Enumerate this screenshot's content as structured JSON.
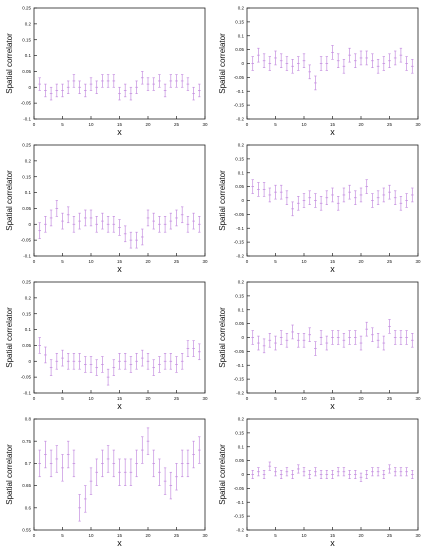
{
  "colors": {
    "marker": "#c58fe0",
    "axis": "#222222",
    "text": "#111111"
  },
  "chart_data": [
    {
      "type": "scatter",
      "xlabel": "x",
      "ylabel": "Spatial correlator",
      "xlim": [
        0,
        30
      ],
      "ylim": [
        -0.1,
        0.25
      ],
      "xticks": [
        "0",
        "5",
        "10",
        "15",
        "20",
        "25",
        "30"
      ],
      "yticks": [
        "0.25",
        "0.2",
        "0.15",
        "0.1",
        "0.05",
        "0",
        "-0.05",
        "-0.1"
      ],
      "series": [
        {
          "x": [
            1,
            2,
            3,
            4,
            5,
            6,
            7,
            8,
            9,
            10,
            11,
            12,
            13,
            14,
            15,
            16,
            17,
            18,
            19,
            20,
            21,
            22,
            23,
            24,
            25,
            26,
            27,
            28,
            29
          ],
          "y": [
            0.01,
            -0.01,
            -0.02,
            -0.01,
            -0.01,
            0.0,
            0.02,
            0.0,
            -0.01,
            0.01,
            0.0,
            0.02,
            0.02,
            0.02,
            -0.02,
            -0.01,
            -0.02,
            0.0,
            0.03,
            0.01,
            0.01,
            0.02,
            -0.01,
            0.02,
            0.02,
            0.02,
            0.01,
            -0.02,
            -0.01
          ],
          "err": [
            0.02,
            0.02,
            0.02,
            0.02,
            0.02,
            0.02,
            0.02,
            0.02,
            0.02,
            0.02,
            0.02,
            0.02,
            0.02,
            0.02,
            0.02,
            0.02,
            0.02,
            0.02,
            0.02,
            0.02,
            0.02,
            0.02,
            0.02,
            0.02,
            0.02,
            0.02,
            0.02,
            0.02,
            0.02
          ]
        }
      ]
    },
    {
      "type": "scatter",
      "xlabel": "x",
      "ylabel": "Spatial correlator",
      "xlim": [
        0,
        30
      ],
      "ylim": [
        -0.2,
        0.2
      ],
      "xticks": [
        "0",
        "5",
        "10",
        "15",
        "20",
        "25",
        "30"
      ],
      "yticks": [
        "0.2",
        "0.15",
        "0.1",
        "0.05",
        "0",
        "-0.05",
        "-0.1",
        "-0.15",
        "-0.2"
      ],
      "series": [
        {
          "x": [
            1,
            2,
            3,
            4,
            5,
            6,
            7,
            8,
            9,
            10,
            11,
            12,
            13,
            14,
            15,
            16,
            17,
            18,
            19,
            20,
            21,
            22,
            23,
            24,
            25,
            26,
            27,
            28,
            29
          ],
          "y": [
            0.0,
            0.03,
            0.01,
            0.0,
            0.02,
            0.01,
            0.0,
            -0.01,
            0.0,
            0.01,
            -0.03,
            -0.07,
            0.0,
            0.0,
            0.04,
            0.01,
            -0.01,
            0.03,
            0.01,
            0.02,
            0.02,
            0.01,
            -0.01,
            0.0,
            0.01,
            0.02,
            0.03,
            0.0,
            -0.01
          ],
          "err": [
            0.025,
            0.025,
            0.025,
            0.025,
            0.025,
            0.025,
            0.025,
            0.025,
            0.025,
            0.025,
            0.025,
            0.025,
            0.025,
            0.025,
            0.025,
            0.025,
            0.025,
            0.025,
            0.025,
            0.025,
            0.025,
            0.025,
            0.025,
            0.025,
            0.025,
            0.025,
            0.025,
            0.025,
            0.025
          ]
        }
      ]
    },
    {
      "type": "scatter",
      "xlabel": "x",
      "ylabel": "Spatial correlator",
      "xlim": [
        0,
        30
      ],
      "ylim": [
        -0.1,
        0.25
      ],
      "xticks": [
        "0",
        "5",
        "10",
        "15",
        "20",
        "25",
        "30"
      ],
      "yticks": [
        "0.25",
        "0.2",
        "0.15",
        "0.1",
        "0.05",
        "0",
        "-0.05",
        "-0.1"
      ],
      "series": [
        {
          "x": [
            1,
            2,
            3,
            4,
            5,
            6,
            7,
            8,
            9,
            10,
            11,
            12,
            13,
            14,
            15,
            16,
            17,
            18,
            19,
            20,
            21,
            22,
            23,
            24,
            25,
            26,
            27,
            28,
            29
          ],
          "y": [
            -0.02,
            0.0,
            0.02,
            0.05,
            0.01,
            0.03,
            0.0,
            0.01,
            0.02,
            0.02,
            0.0,
            0.01,
            0.0,
            0.0,
            -0.01,
            -0.03,
            -0.05,
            -0.05,
            -0.04,
            0.02,
            0.01,
            0.0,
            0.0,
            0.01,
            0.02,
            0.03,
            0.0,
            0.01,
            0.0
          ],
          "err": [
            0.025,
            0.025,
            0.025,
            0.025,
            0.025,
            0.025,
            0.025,
            0.025,
            0.025,
            0.025,
            0.025,
            0.025,
            0.025,
            0.025,
            0.025,
            0.025,
            0.025,
            0.025,
            0.025,
            0.025,
            0.025,
            0.025,
            0.025,
            0.025,
            0.025,
            0.025,
            0.025,
            0.025,
            0.025
          ]
        }
      ]
    },
    {
      "type": "scatter",
      "xlabel": "x",
      "ylabel": "Spatial correlator",
      "xlim": [
        0,
        30
      ],
      "ylim": [
        -0.2,
        0.2
      ],
      "xticks": [
        "0",
        "5",
        "10",
        "15",
        "20",
        "25",
        "30"
      ],
      "yticks": [
        "0.2",
        "0.15",
        "0.1",
        "0.05",
        "0",
        "-0.05",
        "-0.1",
        "-0.15",
        "-0.2"
      ],
      "series": [
        {
          "x": [
            1,
            2,
            3,
            4,
            5,
            6,
            7,
            8,
            9,
            10,
            11,
            12,
            13,
            14,
            15,
            16,
            17,
            18,
            19,
            20,
            21,
            22,
            23,
            24,
            25,
            26,
            27,
            28,
            29
          ],
          "y": [
            0.05,
            0.04,
            0.04,
            0.02,
            0.03,
            0.03,
            0.01,
            -0.03,
            -0.01,
            0.0,
            0.01,
            0.0,
            -0.01,
            0.01,
            0.02,
            -0.01,
            0.02,
            0.03,
            0.01,
            0.02,
            0.05,
            0.0,
            0.01,
            0.02,
            0.03,
            0.01,
            -0.01,
            0.0,
            0.02
          ],
          "err": [
            0.025,
            0.025,
            0.025,
            0.025,
            0.025,
            0.025,
            0.025,
            0.025,
            0.025,
            0.025,
            0.025,
            0.025,
            0.025,
            0.025,
            0.025,
            0.025,
            0.025,
            0.025,
            0.025,
            0.025,
            0.025,
            0.025,
            0.025,
            0.025,
            0.025,
            0.025,
            0.025,
            0.025,
            0.025
          ]
        }
      ]
    },
    {
      "type": "scatter",
      "xlabel": "x",
      "ylabel": "Spatial correlator",
      "xlim": [
        0,
        30
      ],
      "ylim": [
        -0.1,
        0.25
      ],
      "xticks": [
        "0",
        "5",
        "10",
        "15",
        "20",
        "25",
        "30"
      ],
      "yticks": [
        "0.25",
        "0.2",
        "0.15",
        "0.1",
        "0.05",
        "0",
        "-0.05",
        "-0.1"
      ],
      "series": [
        {
          "x": [
            1,
            2,
            3,
            4,
            5,
            6,
            7,
            8,
            9,
            10,
            11,
            12,
            13,
            14,
            15,
            16,
            17,
            18,
            19,
            20,
            21,
            22,
            23,
            24,
            25,
            26,
            27,
            28,
            29
          ],
          "y": [
            0.05,
            0.02,
            -0.02,
            0.0,
            0.01,
            0.0,
            0.0,
            0.0,
            -0.01,
            -0.01,
            -0.02,
            -0.01,
            -0.05,
            -0.02,
            0.0,
            0.0,
            -0.01,
            0.0,
            0.01,
            0.0,
            -0.02,
            -0.01,
            0.0,
            0.0,
            -0.01,
            0.0,
            0.04,
            0.04,
            0.03
          ],
          "err": [
            0.025,
            0.025,
            0.025,
            0.025,
            0.025,
            0.025,
            0.025,
            0.025,
            0.025,
            0.025,
            0.025,
            0.025,
            0.025,
            0.025,
            0.025,
            0.025,
            0.025,
            0.025,
            0.025,
            0.025,
            0.025,
            0.025,
            0.025,
            0.025,
            0.025,
            0.025,
            0.025,
            0.025,
            0.025
          ]
        }
      ]
    },
    {
      "type": "scatter",
      "xlabel": "x",
      "ylabel": "Spatial correlator",
      "xlim": [
        0,
        30
      ],
      "ylim": [
        -0.2,
        0.2
      ],
      "xticks": [
        "0",
        "5",
        "10",
        "15",
        "20",
        "25",
        "30"
      ],
      "yticks": [
        "0.2",
        "0.15",
        "0.1",
        "0.05",
        "0",
        "-0.05",
        "-0.1",
        "-0.15",
        "-0.2"
      ],
      "series": [
        {
          "x": [
            1,
            2,
            3,
            4,
            5,
            6,
            7,
            8,
            9,
            10,
            11,
            12,
            13,
            14,
            15,
            16,
            17,
            18,
            19,
            20,
            21,
            22,
            23,
            24,
            25,
            26,
            27,
            28,
            29
          ],
          "y": [
            0.0,
            -0.02,
            -0.03,
            -0.01,
            -0.02,
            0.0,
            -0.01,
            0.02,
            -0.01,
            -0.01,
            0.01,
            -0.04,
            0.0,
            -0.02,
            0.0,
            0.0,
            -0.01,
            0.0,
            0.0,
            -0.02,
            0.03,
            0.01,
            -0.01,
            -0.02,
            0.04,
            0.0,
            0.0,
            0.0,
            -0.01
          ],
          "err": [
            0.025,
            0.025,
            0.025,
            0.025,
            0.025,
            0.025,
            0.025,
            0.025,
            0.025,
            0.025,
            0.025,
            0.025,
            0.025,
            0.025,
            0.025,
            0.025,
            0.025,
            0.025,
            0.025,
            0.025,
            0.025,
            0.025,
            0.025,
            0.025,
            0.025,
            0.025,
            0.025,
            0.025,
            0.025
          ]
        }
      ]
    },
    {
      "type": "scatter",
      "xlabel": "x",
      "ylabel": "Spatial correlator",
      "xlim": [
        0,
        30
      ],
      "ylim": [
        0.55,
        0.8
      ],
      "xticks": [
        "0",
        "5",
        "10",
        "15",
        "20",
        "25",
        "30"
      ],
      "yticks": [
        "0.8",
        "0.75",
        "0.7",
        "0.65",
        "0.6",
        "0.55"
      ],
      "series": [
        {
          "x": [
            1,
            2,
            3,
            4,
            5,
            6,
            7,
            8,
            9,
            10,
            11,
            12,
            13,
            14,
            15,
            16,
            17,
            18,
            19,
            20,
            21,
            22,
            23,
            24,
            25,
            26,
            27,
            28,
            29
          ],
          "y": [
            0.7,
            0.72,
            0.7,
            0.71,
            0.69,
            0.72,
            0.7,
            0.6,
            0.62,
            0.66,
            0.68,
            0.7,
            0.71,
            0.7,
            0.68,
            0.68,
            0.68,
            0.7,
            0.73,
            0.75,
            0.7,
            0.68,
            0.66,
            0.65,
            0.67,
            0.7,
            0.7,
            0.72,
            0.73
          ],
          "err": [
            0.03,
            0.03,
            0.03,
            0.03,
            0.03,
            0.03,
            0.03,
            0.03,
            0.03,
            0.03,
            0.03,
            0.03,
            0.03,
            0.03,
            0.03,
            0.03,
            0.03,
            0.03,
            0.03,
            0.03,
            0.03,
            0.03,
            0.03,
            0.03,
            0.03,
            0.03,
            0.03,
            0.03,
            0.03
          ]
        }
      ]
    },
    {
      "type": "scatter",
      "xlabel": "x",
      "ylabel": "Spatial correlator",
      "xlim": [
        0,
        30
      ],
      "ylim": [
        -0.2,
        0.2
      ],
      "xticks": [
        "0",
        "5",
        "10",
        "15",
        "20",
        "25",
        "30"
      ],
      "yticks": [
        "0.2",
        "0.15",
        "0.1",
        "0.05",
        "0",
        "-0.05",
        "-0.1",
        "-0.15",
        "-0.2"
      ],
      "series": [
        {
          "x": [
            1,
            2,
            3,
            4,
            5,
            6,
            7,
            8,
            9,
            10,
            11,
            12,
            13,
            14,
            15,
            16,
            17,
            18,
            19,
            20,
            21,
            22,
            23,
            24,
            25,
            26,
            27,
            28,
            29
          ],
          "y": [
            0.0,
            0.01,
            0.0,
            0.03,
            0.01,
            0.0,
            0.01,
            0.0,
            0.02,
            0.01,
            0.0,
            0.01,
            0.0,
            0.0,
            0.0,
            0.01,
            0.01,
            0.0,
            0.0,
            -0.01,
            0.0,
            0.01,
            0.01,
            0.0,
            0.02,
            0.01,
            0.01,
            0.01,
            0.0
          ],
          "err": [
            0.015,
            0.015,
            0.015,
            0.015,
            0.015,
            0.015,
            0.015,
            0.015,
            0.015,
            0.015,
            0.015,
            0.015,
            0.015,
            0.015,
            0.015,
            0.015,
            0.015,
            0.015,
            0.015,
            0.015,
            0.015,
            0.015,
            0.015,
            0.015,
            0.015,
            0.015,
            0.015,
            0.015,
            0.015
          ]
        }
      ]
    }
  ]
}
